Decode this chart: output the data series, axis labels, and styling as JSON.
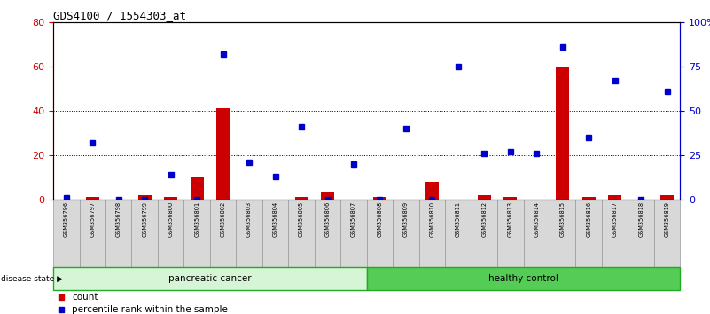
{
  "title": "GDS4100 / 1554303_at",
  "samples": [
    "GSM356796",
    "GSM356797",
    "GSM356798",
    "GSM356799",
    "GSM356800",
    "GSM356801",
    "GSM356802",
    "GSM356803",
    "GSM356804",
    "GSM356805",
    "GSM356806",
    "GSM356807",
    "GSM356808",
    "GSM356809",
    "GSM356810",
    "GSM356811",
    "GSM356812",
    "GSM356813",
    "GSM356814",
    "GSM356815",
    "GSM356816",
    "GSM356817",
    "GSM356818",
    "GSM356819"
  ],
  "count": [
    0,
    1,
    0,
    2,
    1,
    10,
    41,
    0,
    0,
    1,
    3,
    0,
    1,
    0,
    8,
    0,
    2,
    1,
    0,
    60,
    1,
    2,
    0,
    2
  ],
  "percentile": [
    1,
    32,
    0,
    0,
    14,
    0,
    82,
    21,
    13,
    41,
    0,
    20,
    0,
    40,
    0,
    75,
    26,
    27,
    26,
    86,
    35,
    67,
    0,
    61
  ],
  "groups": [
    "pancreatic cancer",
    "pancreatic cancer",
    "pancreatic cancer",
    "pancreatic cancer",
    "pancreatic cancer",
    "pancreatic cancer",
    "pancreatic cancer",
    "pancreatic cancer",
    "pancreatic cancer",
    "pancreatic cancer",
    "pancreatic cancer",
    "pancreatic cancer",
    "healthy control",
    "healthy control",
    "healthy control",
    "healthy control",
    "healthy control",
    "healthy control",
    "healthy control",
    "healthy control",
    "healthy control",
    "healthy control",
    "healthy control",
    "healthy control"
  ],
  "bar_color": "#cc0000",
  "dot_color": "#0000cc",
  "pancreatic_bg": "#d6f5d6",
  "healthy_bg": "#55cc55",
  "group_edge": "#22aa22",
  "sample_box_bg": "#d8d8d8",
  "sample_box_edge": "#999999",
  "left_tick_color": "#cc0000",
  "right_tick_color": "#0000cc"
}
